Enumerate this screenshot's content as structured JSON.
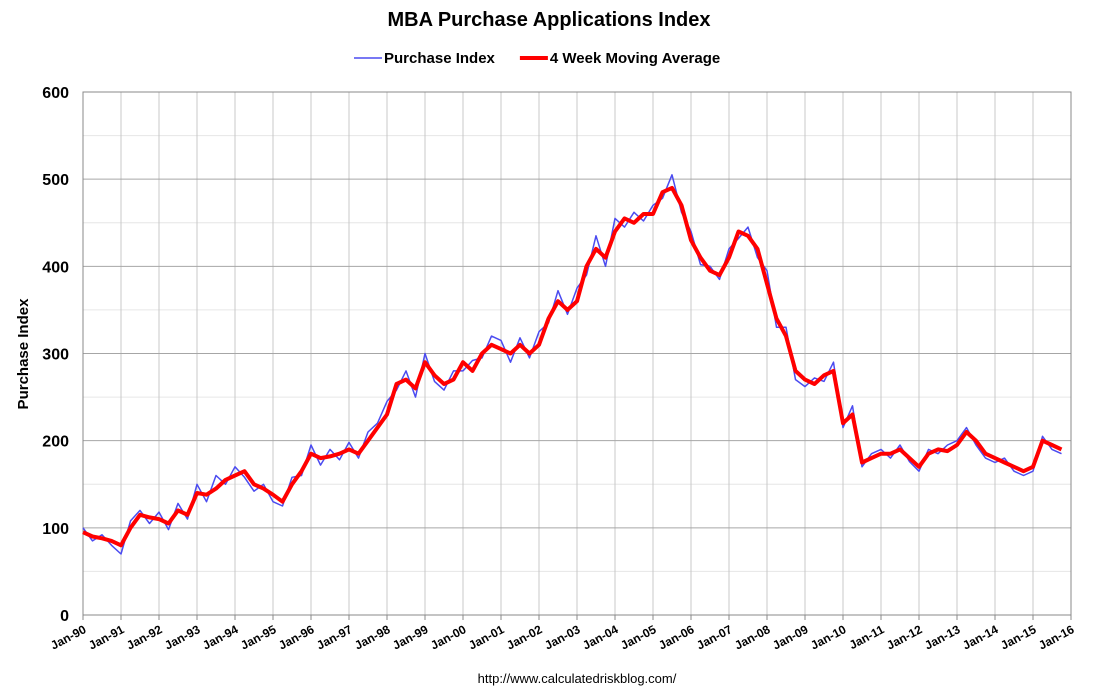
{
  "chart_data": {
    "type": "line",
    "title": "MBA Purchase Applications Index",
    "ylabel": "Purchase Index",
    "source": "http://www.calculatedriskblog.com/",
    "xlim": [
      1990,
      2016
    ],
    "ylim": [
      0,
      600
    ],
    "yticks": [
      0,
      100,
      200,
      300,
      400,
      500,
      600
    ],
    "xticks": [
      {
        "value": 1990,
        "label": "Jan-90"
      },
      {
        "value": 1991,
        "label": "Jan-91"
      },
      {
        "value": 1992,
        "label": "Jan-92"
      },
      {
        "value": 1993,
        "label": "Jan-93"
      },
      {
        "value": 1994,
        "label": "Jan-94"
      },
      {
        "value": 1995,
        "label": "Jan-95"
      },
      {
        "value": 1996,
        "label": "Jan-96"
      },
      {
        "value": 1997,
        "label": "Jan-97"
      },
      {
        "value": 1998,
        "label": "Jan-98"
      },
      {
        "value": 1999,
        "label": "Jan-99"
      },
      {
        "value": 2000,
        "label": "Jan-00"
      },
      {
        "value": 2001,
        "label": "Jan-01"
      },
      {
        "value": 2002,
        "label": "Jan-02"
      },
      {
        "value": 2003,
        "label": "Jan-03"
      },
      {
        "value": 2004,
        "label": "Jan-04"
      },
      {
        "value": 2005,
        "label": "Jan-05"
      },
      {
        "value": 2006,
        "label": "Jan-06"
      },
      {
        "value": 2007,
        "label": "Jan-07"
      },
      {
        "value": 2008,
        "label": "Jan-08"
      },
      {
        "value": 2009,
        "label": "Jan-09"
      },
      {
        "value": 2010,
        "label": "Jan-10"
      },
      {
        "value": 2011,
        "label": "Jan-11"
      },
      {
        "value": 2012,
        "label": "Jan-12"
      },
      {
        "value": 2013,
        "label": "Jan-13"
      },
      {
        "value": 2014,
        "label": "Jan-14"
      },
      {
        "value": 2015,
        "label": "Jan-15"
      },
      {
        "value": 2016,
        "label": "Jan-16"
      }
    ],
    "grid": true,
    "legend": "top",
    "x": [
      1990,
      1990.25,
      1990.5,
      1990.75,
      1991,
      1991.25,
      1991.5,
      1991.75,
      1992,
      1992.25,
      1992.5,
      1992.75,
      1993,
      1993.25,
      1993.5,
      1993.75,
      1994,
      1994.25,
      1994.5,
      1994.75,
      1995,
      1995.25,
      1995.5,
      1995.75,
      1996,
      1996.25,
      1996.5,
      1996.75,
      1997,
      1997.25,
      1997.5,
      1997.75,
      1998,
      1998.25,
      1998.5,
      1998.75,
      1999,
      1999.25,
      1999.5,
      1999.75,
      2000,
      2000.25,
      2000.5,
      2000.75,
      2001,
      2001.25,
      2001.5,
      2001.75,
      2002,
      2002.25,
      2002.5,
      2002.75,
      2003,
      2003.25,
      2003.5,
      2003.75,
      2004,
      2004.25,
      2004.5,
      2004.75,
      2005,
      2005.25,
      2005.5,
      2005.75,
      2006,
      2006.25,
      2006.5,
      2006.75,
      2007,
      2007.25,
      2007.5,
      2007.75,
      2008,
      2008.25,
      2008.5,
      2008.75,
      2009,
      2009.25,
      2009.5,
      2009.75,
      2010,
      2010.25,
      2010.5,
      2010.75,
      2011,
      2011.25,
      2011.5,
      2011.75,
      2012,
      2012.25,
      2012.5,
      2012.75,
      2013,
      2013.25,
      2013.5,
      2013.75,
      2014,
      2014.25,
      2014.5,
      2014.75,
      2015,
      2015.25,
      2015.5,
      2015.75
    ],
    "series": [
      {
        "name": "Purchase Index",
        "color": "#4b4bf0",
        "width": 1.5,
        "values": [
          100,
          85,
          92,
          80,
          70,
          108,
          120,
          105,
          118,
          98,
          128,
          110,
          150,
          130,
          160,
          150,
          170,
          158,
          142,
          150,
          130,
          125,
          158,
          160,
          195,
          172,
          190,
          178,
          198,
          180,
          210,
          220,
          245,
          258,
          280,
          250,
          300,
          268,
          258,
          280,
          280,
          292,
          295,
          320,
          315,
          290,
          318,
          295,
          325,
          335,
          372,
          345,
          375,
          390,
          435,
          400,
          455,
          445,
          462,
          452,
          470,
          478,
          505,
          462,
          440,
          402,
          400,
          385,
          420,
          432,
          445,
          410,
          395,
          330,
          330,
          270,
          262,
          272,
          268,
          290,
          215,
          240,
          170,
          185,
          190,
          180,
          195,
          176,
          165,
          190,
          185,
          195,
          200,
          215,
          195,
          180,
          175,
          180,
          165,
          160,
          165,
          205,
          190,
          185
        ]
      },
      {
        "name": "4 Week Moving Average",
        "color": "#ff0000",
        "width": 4,
        "values": [
          95,
          90,
          88,
          85,
          80,
          100,
          115,
          112,
          110,
          105,
          120,
          115,
          140,
          138,
          145,
          155,
          160,
          165,
          150,
          145,
          138,
          130,
          150,
          165,
          185,
          180,
          182,
          185,
          190,
          185,
          200,
          215,
          230,
          265,
          270,
          260,
          290,
          275,
          265,
          270,
          290,
          280,
          300,
          310,
          305,
          300,
          310,
          300,
          310,
          340,
          360,
          350,
          360,
          400,
          420,
          410,
          440,
          455,
          450,
          460,
          460,
          485,
          490,
          470,
          430,
          410,
          395,
          390,
          410,
          440,
          435,
          420,
          380,
          340,
          320,
          280,
          270,
          265,
          275,
          280,
          220,
          230,
          175,
          180,
          185,
          185,
          190,
          180,
          170,
          185,
          190,
          188,
          195,
          210,
          200,
          185,
          180,
          175,
          170,
          165,
          170,
          200,
          195,
          190
        ]
      }
    ]
  }
}
